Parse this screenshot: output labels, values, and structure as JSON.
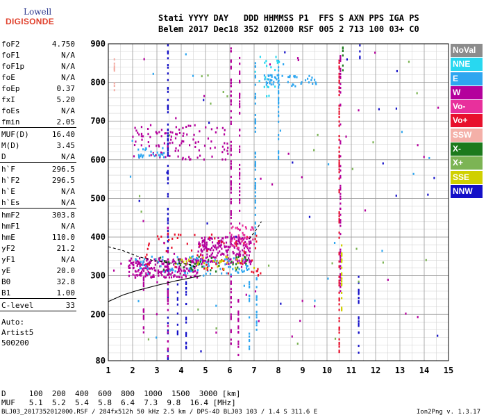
{
  "logo": {
    "line1": "Lowell",
    "line2": "DIGISONDE"
  },
  "header": {
    "labels": "Stati YYYY DAY   DDD HHMMSS P1  FFS S AXN PPS IGA PS",
    "values": "Belem 2017 Dec18 352 012000 RSF 005 2 713 100 03+ C0"
  },
  "params": [
    {
      "name": "foF2",
      "value": "4.750"
    },
    {
      "name": "foF1",
      "value": "N/A"
    },
    {
      "name": "foF1p",
      "value": "N/A"
    },
    {
      "name": "foE",
      "value": "N/A"
    },
    {
      "name": "foEp",
      "value": "0.37"
    },
    {
      "name": "fxI",
      "value": "5.20"
    },
    {
      "name": "foEs",
      "value": "N/A"
    },
    {
      "name": "fmin",
      "value": "2.05",
      "sep": true
    },
    {
      "name": "MUF(D)",
      "value": "16.40"
    },
    {
      "name": "M(D)",
      "value": "3.45"
    },
    {
      "name": "D",
      "value": "N/A",
      "sep": true
    },
    {
      "name": "h`F",
      "value": "296.5"
    },
    {
      "name": "h`F2",
      "value": "296.5"
    },
    {
      "name": "h`E",
      "value": "N/A"
    },
    {
      "name": "h`Es",
      "value": "N/A",
      "sep": true
    },
    {
      "name": "hmF2",
      "value": "303.8"
    },
    {
      "name": "hmF1",
      "value": "N/A"
    },
    {
      "name": "hmE",
      "value": "110.0"
    },
    {
      "name": "yF2",
      "value": "21.2"
    },
    {
      "name": "yF1",
      "value": "N/A"
    },
    {
      "name": "yE",
      "value": "20.0"
    },
    {
      "name": "B0",
      "value": "32.8"
    },
    {
      "name": "B1",
      "value": "1.00",
      "sep": true
    },
    {
      "name": "C-level",
      "value": "33",
      "sep": true
    }
  ],
  "auto": [
    "Auto:",
    "Artist5",
    "500200"
  ],
  "legend": [
    {
      "label": "NoVal",
      "color": "#8c8c8c"
    },
    {
      "label": "NNE",
      "color": "#28d8f0"
    },
    {
      "label": "E",
      "color": "#2ea6f0"
    },
    {
      "label": "W",
      "color": "#b4009c"
    },
    {
      "label": "Vo-",
      "color": "#e8309c"
    },
    {
      "label": "Vo+",
      "color": "#e8102c"
    },
    {
      "label": "SSW",
      "color": "#f4b0a8"
    },
    {
      "label": "X-",
      "color": "#1c7a1c"
    },
    {
      "label": "X+",
      "color": "#7cb454"
    },
    {
      "label": "SSE",
      "color": "#d0d000"
    },
    {
      "label": "NNW",
      "color": "#1410c8"
    }
  ],
  "muf_table": {
    "d_row": "D     100  200  400  600  800  1000  1500  3000 [km]",
    "muf_row": "MUF   5.1  5.2  5.4  5.8  6.4  7.3  9.8  16.4 [MHz]"
  },
  "footer": "BLJ03_2017352012000.RSF / 284fx512h 50 kHz 2.5 km / DPS-4D BLJ03 103 / 1.4 S 311.6 E",
  "version": "Ion2Png v. 1.3.17",
  "chart_data": {
    "type": "scatter",
    "title": "",
    "xlabel": "",
    "ylabel": "",
    "xlim": [
      1,
      15
    ],
    "ylim": [
      80,
      900
    ],
    "x_ticks": [
      1,
      2,
      3,
      4,
      5,
      6,
      7,
      8,
      9,
      10,
      11,
      12,
      13,
      14,
      15
    ],
    "y_ticks": [
      80,
      200,
      300,
      400,
      500,
      600,
      700,
      800,
      900
    ],
    "grid": true,
    "clusters": [
      {
        "name": "F-trace",
        "x": [
          1.8,
          4.7
        ],
        "y": [
          295,
          345
        ],
        "color": "#b4009c",
        "count": 220
      },
      {
        "name": "F-trace-hi",
        "x": [
          4.7,
          6.9
        ],
        "y": [
          330,
          400
        ],
        "color": "#b4009c",
        "count": 220
      },
      {
        "name": "F-mix",
        "x": [
          2.0,
          6.8
        ],
        "y": [
          300,
          350
        ],
        "color": "#2ea6f0",
        "count": 90
      },
      {
        "name": "F-green",
        "x": [
          3.0,
          6.8
        ],
        "y": [
          310,
          350
        ],
        "color": "#1c7a1c",
        "count": 40
      },
      {
        "name": "F-red",
        "x": [
          2.5,
          7.3
        ],
        "y": [
          300,
          410
        ],
        "color": "#e8102c",
        "count": 70
      },
      {
        "name": "F-yellow",
        "x": [
          3.5,
          7.0
        ],
        "y": [
          315,
          350
        ],
        "color": "#d0d000",
        "count": 30
      },
      {
        "name": "F2-multi",
        "x": [
          2.0,
          6.0
        ],
        "y": [
          600,
          690
        ],
        "color": "#b4009c",
        "count": 110
      },
      {
        "name": "F2-multi-b",
        "x": [
          2.2,
          3.4
        ],
        "y": [
          605,
          630
        ],
        "color": "#2ea6f0",
        "count": 25
      },
      {
        "name": "hi-blue",
        "x": [
          7.3,
          9.6
        ],
        "y": [
          790,
          820
        ],
        "color": "#2ea6f0",
        "count": 50
      },
      {
        "name": "hi-cyan",
        "x": [
          7.0,
          8.3
        ],
        "y": [
          760,
          870
        ],
        "color": "#28d8f0",
        "count": 20
      },
      {
        "name": "scatter-w",
        "x": [
          6.0,
          7.0
        ],
        "y": [
          370,
          430
        ],
        "color": "#e8309c",
        "count": 40
      },
      {
        "name": "bg-noise",
        "x": [
          1.2,
          14.6
        ],
        "y": [
          100,
          880
        ],
        "color": "#7cb454",
        "count": 25
      },
      {
        "name": "bg-noise-w",
        "x": [
          1.2,
          14.6
        ],
        "y": [
          100,
          880
        ],
        "color": "#b4009c",
        "count": 40
      },
      {
        "name": "bg-noise-b",
        "x": [
          1.2,
          14.6
        ],
        "y": [
          100,
          880
        ],
        "color": "#1410c8",
        "count": 20
      },
      {
        "name": "bg-noise-e",
        "x": [
          1.2,
          14.6
        ],
        "y": [
          100,
          880
        ],
        "color": "#2ea6f0",
        "count": 20
      }
    ],
    "vertical_streaks": [
      {
        "x": 1.25,
        "y": [
          770,
          860
        ],
        "color": "#f4b0a8"
      },
      {
        "x": 2.45,
        "y": [
          150,
          300
        ],
        "color": "#b4009c"
      },
      {
        "x": 3.45,
        "y": [
          80,
          900
        ],
        "color": "#1410c8"
      },
      {
        "x": 3.45,
        "y": [
          90,
          430
        ],
        "color": "#b4009c"
      },
      {
        "x": 3.85,
        "y": [
          140,
          290
        ],
        "color": "#1410c8"
      },
      {
        "x": 4.2,
        "y": [
          110,
          290
        ],
        "color": "#1410c8"
      },
      {
        "x": 6.05,
        "y": [
          380,
          900
        ],
        "color": "#b4009c"
      },
      {
        "x": 6.05,
        "y": [
          100,
          300
        ],
        "color": "#b4009c"
      },
      {
        "x": 6.35,
        "y": [
          80,
          250
        ],
        "color": "#b4009c"
      },
      {
        "x": 6.4,
        "y": [
          380,
          880
        ],
        "color": "#b4009c"
      },
      {
        "x": 6.8,
        "y": [
          110,
          300
        ],
        "color": "#2ea6f0"
      },
      {
        "x": 7.05,
        "y": [
          400,
          860
        ],
        "color": "#2ea6f0"
      },
      {
        "x": 7.1,
        "y": [
          150,
          300
        ],
        "color": "#2ea6f0"
      },
      {
        "x": 8.0,
        "y": [
          600,
          880
        ],
        "color": "#2ea6f0"
      },
      {
        "x": 10.5,
        "y": [
          100,
          880
        ],
        "color": "#e8102c"
      },
      {
        "x": 10.55,
        "y": [
          250,
          880
        ],
        "color": "#b4009c"
      },
      {
        "x": 10.6,
        "y": [
          210,
          400
        ],
        "color": "#d0d000"
      },
      {
        "x": 10.65,
        "y": [
          830,
          900
        ],
        "color": "#1c7a1c"
      },
      {
        "x": 11.3,
        "y": [
          100,
          300
        ],
        "color": "#1410c8"
      },
      {
        "x": 11.35,
        "y": [
          850,
          900
        ],
        "color": "#1410c8"
      }
    ],
    "profile_curve": [
      [
        1.0,
        233
      ],
      [
        1.6,
        250
      ],
      [
        2.2,
        262
      ],
      [
        3.0,
        275
      ],
      [
        3.8,
        287
      ],
      [
        4.6,
        297
      ],
      [
        4.8,
        300
      ]
    ],
    "dashed_curve": [
      [
        1.0,
        375
      ],
      [
        1.6,
        365
      ],
      [
        2.2,
        350
      ],
      [
        2.8,
        340
      ],
      [
        3.5,
        333
      ],
      [
        4.3,
        330
      ],
      [
        4.6,
        322
      ]
    ],
    "dashed_curve_2": [
      [
        6.8,
        395
      ],
      [
        7.1,
        420
      ],
      [
        7.3,
        440
      ]
    ]
  }
}
